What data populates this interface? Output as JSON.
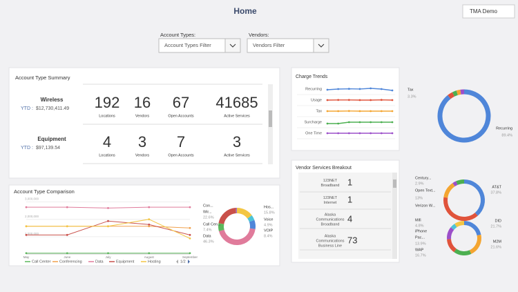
{
  "header": {
    "title": "Home",
    "user": "TMA Demo"
  },
  "filters": [
    {
      "label": "Account Types:",
      "placeholder": "Account Types Filter"
    },
    {
      "label": "Vendors:",
      "placeholder": "Vendors Filter"
    }
  ],
  "account_type_summary": {
    "title": "Account Type Summary",
    "rows": [
      {
        "name": "Wireless",
        "ytd_label": "YTD :",
        "ytd": "$12,730,411.49",
        "stats": [
          {
            "value": 192,
            "label": "Locations"
          },
          {
            "value": 16,
            "label": "Vendors"
          },
          {
            "value": 67,
            "label": "Open Accounts"
          },
          {
            "value": 41685,
            "label": "Active Services"
          }
        ]
      },
      {
        "name": "Equipment",
        "ytd_label": "YTD :",
        "ytd": "$97,139.54",
        "stats": [
          {
            "value": 4,
            "label": "Locations"
          },
          {
            "value": 3,
            "label": "Vendors"
          },
          {
            "value": 7,
            "label": "Open Accounts"
          },
          {
            "value": 3,
            "label": "Active Services"
          }
        ]
      }
    ]
  },
  "account_type_comparison": {
    "title": "Account Type Comparison",
    "line_chart": {
      "type": "line",
      "categories": [
        "May",
        "June",
        "July",
        "August",
        "September"
      ],
      "ylim": [
        0,
        3300000
      ],
      "yticks": [
        {
          "value": 1000000,
          "label": "1,000,000"
        },
        {
          "value": 2000000,
          "label": "2,000,000"
        },
        {
          "value": 3000000,
          "label": "3,000,000"
        }
      ],
      "series": [
        {
          "name": "Call Center",
          "color": "#5cb85c",
          "values": [
            50000,
            50000,
            50000,
            50000,
            50000
          ]
        },
        {
          "name": "Conferencing",
          "color": "#f0a04b",
          "values": [
            1600000,
            1600000,
            1600000,
            1600000,
            1500000
          ]
        },
        {
          "name": "Data",
          "color": "#e07b9b",
          "values": [
            2700000,
            2700000,
            2650000,
            2700000,
            2700000
          ]
        },
        {
          "name": "Equipment",
          "color": "#c9504a",
          "values": [
            1100000,
            1100000,
            1900000,
            1700000,
            1100000
          ]
        },
        {
          "name": "Hosting",
          "color": "#f3c644",
          "values": [
            1600000,
            1600000,
            1600000,
            2000000,
            900000
          ]
        }
      ],
      "legend_page": "1/2"
    },
    "donut": {
      "type": "pie",
      "labels": [
        "Hos...",
        "Voice",
        "VOIP",
        "Data",
        "Call Cen...",
        "Wir...",
        "Con..."
      ],
      "values": [
        15.8,
        4.9,
        8.4,
        46.3,
        7.4,
        22.6,
        1
      ],
      "value_labels": [
        "15.8%",
        "4.9%",
        "8.4%",
        "46.3%",
        "7.4%",
        "22.6%",
        null
      ],
      "colors": [
        "#f3c644",
        "#4dc3d8",
        "#4f86d9",
        "#e07b9b",
        "#5cb85c",
        "#c9504a",
        "#9c6fc9"
      ]
    }
  },
  "charge_trends": {
    "title": "Charge Trends",
    "chart": {
      "type": "line",
      "ylim": [
        0,
        10
      ],
      "series": [
        {
          "name": "Recurring",
          "color": "#4f86d9",
          "values": [
            4,
            5,
            5.3,
            5.1,
            6,
            5,
            3
          ]
        },
        {
          "name": "Usage",
          "color": "#e0533b",
          "values": [
            5,
            5.2,
            5.2,
            5,
            5,
            5.3,
            5
          ]
        },
        {
          "name": "Tax",
          "color": "#f4a531",
          "values": [
            5,
            5,
            5.2,
            5,
            5,
            5,
            5
          ]
        },
        {
          "name": "Surcharge",
          "color": "#4caf50",
          "values": [
            3,
            3,
            5,
            5,
            5,
            5,
            5
          ]
        },
        {
          "name": "One Time",
          "color": "#9c4fc9",
          "values": [
            5,
            5,
            5,
            5,
            5,
            5,
            5
          ]
        }
      ]
    }
  },
  "charge_donut": {
    "type": "pie",
    "labels": [
      "Recurring",
      "Tax",
      null,
      null,
      null
    ],
    "values": [
      89.4,
      3.3,
      2.6,
      2.4,
      2.3
    ],
    "value_labels": [
      "89.4%",
      "3.3%",
      null,
      null,
      null
    ],
    "colors": [
      "#4f86d9",
      "#e0533b",
      "#4caf50",
      "#f4a531",
      "#9c4fc9"
    ]
  },
  "vendor_services": {
    "title": "Vendor Services Breakout",
    "rows": [
      {
        "name_lines": [
          "123NET",
          "Broadband"
        ],
        "count": 1
      },
      {
        "name_lines": [
          "123NET",
          "Internet"
        ],
        "count": 1
      },
      {
        "name_lines": [
          "Alaska",
          "Communications",
          "Broadband"
        ],
        "count": 4
      },
      {
        "name_lines": [
          "Alaska",
          "Communications",
          "Business Line"
        ],
        "count": 73
      }
    ]
  },
  "vendor_donut": {
    "type": "pie",
    "labels": [
      "AT&T",
      "Verizon W...",
      "Open Text...",
      "Century...",
      null
    ],
    "values": [
      37.8,
      38,
      13,
      2.9,
      6.3
    ],
    "value_labels": [
      "37.8%",
      null,
      "13%",
      "2.9%",
      null
    ],
    "colors": [
      "#4f86d9",
      "#e0533b",
      "#f4a531",
      "#9c4fc9",
      "#4caf50"
    ]
  },
  "device_donut": {
    "type": "pie",
    "labels": [
      "DID",
      "M2M",
      "WAP",
      "Pac...",
      "iPhone",
      "Mifi",
      null
    ],
    "values": [
      21.7,
      21.6,
      16.7,
      13.9,
      12,
      4.8,
      9.3
    ],
    "value_labels": [
      "21.7%",
      "21.6%",
      "16.7%",
      "13.9%",
      null,
      "4.8%",
      null
    ],
    "colors": [
      "#4f86d9",
      "#f4a531",
      "#4caf50",
      "#e0533b",
      "#9c4fc9",
      "#4dc3d8",
      "#f3c644"
    ]
  }
}
